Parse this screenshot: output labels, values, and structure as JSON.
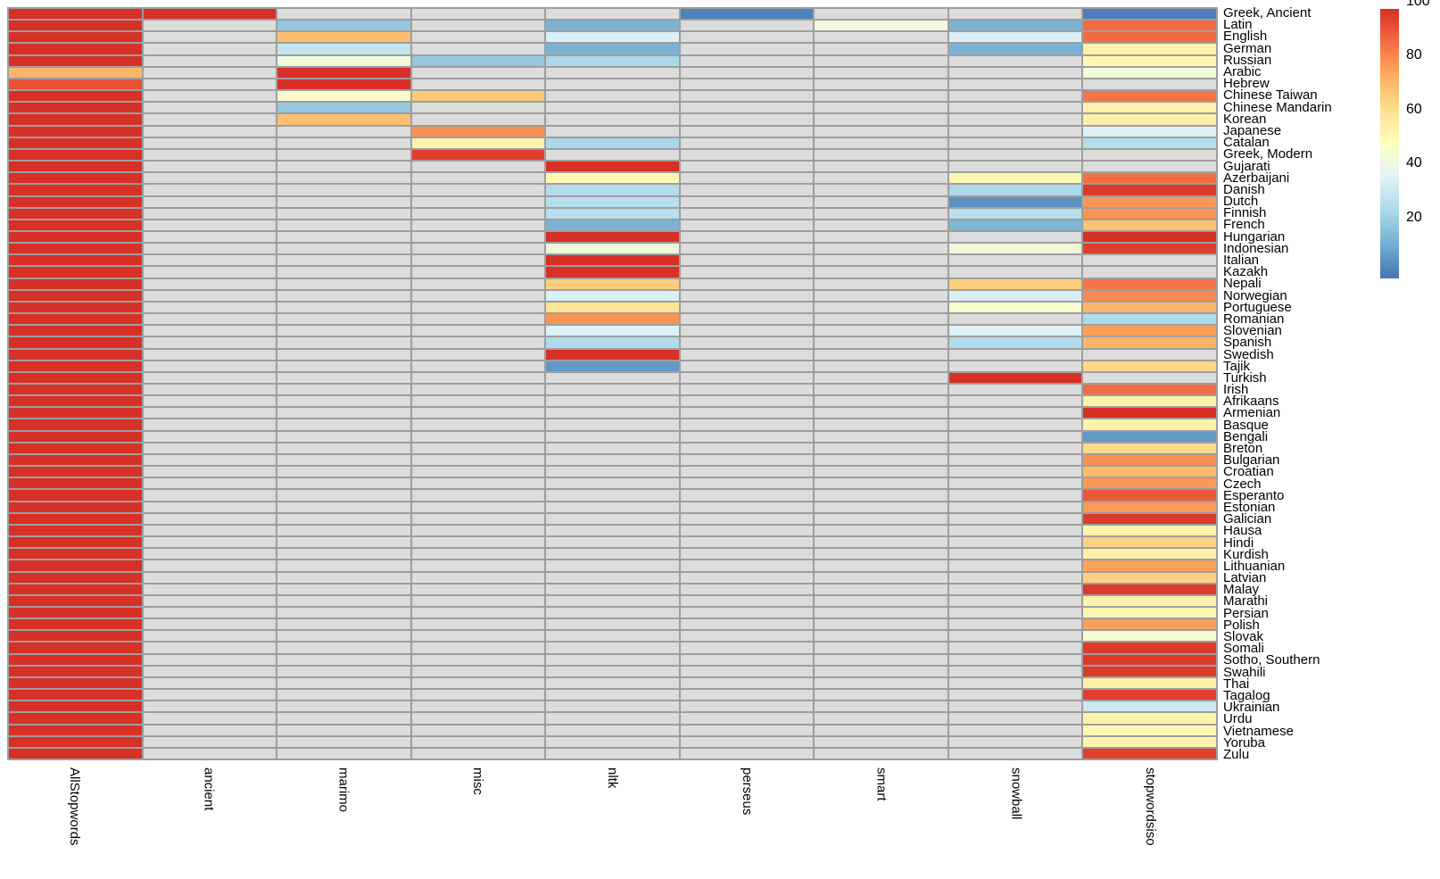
{
  "chart_data": {
    "type": "heatmap",
    "title": "",
    "legend_position": "right",
    "grid_on": true,
    "columns": [
      "AllStopwords",
      "ancient",
      "marimo",
      "misc",
      "nltk",
      "perseus",
      "smart",
      "snowball",
      "stopwordsiso"
    ],
    "rows": [
      "Greek, Ancient",
      "Latin",
      "English",
      "German",
      "Russian",
      "Arabic",
      "Hebrew",
      "Chinese Taiwan",
      "Chinese Mandarin",
      "Korean",
      "Japanese",
      "Catalan",
      "Greek, Modern",
      "Gujarati",
      "Azerbaijani",
      "Danish",
      "Dutch",
      "Finnish",
      "French",
      "Hungarian",
      "Indonesian",
      "Italian",
      "Kazakh",
      "Nepali",
      "Norwegian",
      "Portuguese",
      "Romanian",
      "Slovenian",
      "Spanish",
      "Swedish",
      "Tajik",
      "Turkish",
      "Irish",
      "Afrikaans",
      "Armenian",
      "Basque",
      "Bengali",
      "Breton",
      "Bulgarian",
      "Croatian",
      "Czech",
      "Esperanto",
      "Estonian",
      "Galician",
      "Hausa",
      "Hindi",
      "Kurdish",
      "Lithuanian",
      "Latvian",
      "Malay",
      "Marathi",
      "Persian",
      "Polish",
      "Slovak",
      "Somali",
      "Sotho, Southern",
      "Swahili",
      "Thai",
      "Tagalog",
      "Ukrainian",
      "Urdu",
      "Vietnamese",
      "Yoruba",
      "Zulu"
    ],
    "values": [
      [
        100,
        100,
        null,
        null,
        null,
        3,
        null,
        null,
        2
      ],
      [
        100,
        null,
        20,
        null,
        14,
        null,
        44,
        14,
        88
      ],
      [
        100,
        null,
        71,
        null,
        36,
        null,
        null,
        36,
        88
      ],
      [
        100,
        null,
        31,
        null,
        14,
        null,
        null,
        14,
        55
      ],
      [
        100,
        null,
        44,
        20,
        25,
        null,
        null,
        null,
        53
      ],
      [
        73,
        null,
        100,
        null,
        null,
        null,
        null,
        null,
        45
      ],
      [
        93,
        null,
        100,
        null,
        null,
        null,
        null,
        null,
        null
      ],
      [
        100,
        null,
        47,
        68,
        null,
        null,
        null,
        null,
        86
      ],
      [
        100,
        null,
        20,
        null,
        null,
        null,
        null,
        null,
        55
      ],
      [
        100,
        null,
        71,
        null,
        null,
        null,
        null,
        null,
        56
      ],
      [
        100,
        null,
        null,
        81,
        null,
        null,
        null,
        null,
        37
      ],
      [
        100,
        null,
        null,
        55,
        25,
        null,
        null,
        null,
        27
      ],
      [
        100,
        null,
        null,
        97,
        null,
        null,
        null,
        null,
        null
      ],
      [
        100,
        null,
        null,
        null,
        100,
        null,
        null,
        null,
        null
      ],
      [
        100,
        null,
        null,
        null,
        53,
        null,
        null,
        53,
        87
      ],
      [
        100,
        null,
        null,
        null,
        27,
        null,
        null,
        25,
        98
      ],
      [
        100,
        null,
        null,
        null,
        28,
        null,
        null,
        6,
        79
      ],
      [
        100,
        null,
        null,
        null,
        28,
        null,
        null,
        28,
        80
      ],
      [
        100,
        null,
        null,
        null,
        14,
        null,
        null,
        15,
        70
      ],
      [
        100,
        null,
        null,
        null,
        100,
        null,
        null,
        null,
        100
      ],
      [
        100,
        null,
        null,
        null,
        44,
        null,
        null,
        44,
        97
      ],
      [
        100,
        null,
        null,
        null,
        100,
        null,
        null,
        null,
        null
      ],
      [
        100,
        null,
        null,
        null,
        100,
        null,
        null,
        null,
        null
      ],
      [
        100,
        null,
        null,
        null,
        67,
        null,
        null,
        67,
        86
      ],
      [
        100,
        null,
        null,
        null,
        36,
        null,
        null,
        36,
        82
      ],
      [
        100,
        null,
        null,
        null,
        61,
        null,
        null,
        47,
        73
      ],
      [
        100,
        null,
        null,
        null,
        80,
        null,
        null,
        null,
        26
      ],
      [
        100,
        null,
        null,
        null,
        37,
        null,
        null,
        37,
        78
      ],
      [
        100,
        null,
        null,
        null,
        26,
        null,
        null,
        26,
        74
      ],
      [
        100,
        null,
        null,
        null,
        100,
        null,
        null,
        null,
        null
      ],
      [
        100,
        null,
        null,
        null,
        8,
        null,
        null,
        null,
        65
      ],
      [
        100,
        null,
        null,
        null,
        null,
        null,
        null,
        100,
        null
      ],
      [
        100,
        null,
        null,
        null,
        null,
        null,
        null,
        null,
        88
      ],
      [
        100,
        null,
        null,
        null,
        null,
        null,
        null,
        null,
        55
      ],
      [
        100,
        null,
        null,
        null,
        null,
        null,
        null,
        null,
        100
      ],
      [
        100,
        null,
        null,
        null,
        null,
        null,
        null,
        null,
        55
      ],
      [
        100,
        null,
        null,
        null,
        null,
        null,
        null,
        null,
        8
      ],
      [
        100,
        null,
        null,
        null,
        null,
        null,
        null,
        null,
        64
      ],
      [
        100,
        null,
        null,
        null,
        null,
        null,
        null,
        null,
        81
      ],
      [
        100,
        null,
        null,
        null,
        null,
        null,
        null,
        null,
        72
      ],
      [
        100,
        null,
        null,
        null,
        null,
        null,
        null,
        null,
        79
      ],
      [
        100,
        null,
        null,
        null,
        null,
        null,
        null,
        null,
        92
      ],
      [
        100,
        null,
        null,
        null,
        null,
        null,
        null,
        null,
        79
      ],
      [
        100,
        null,
        null,
        null,
        null,
        null,
        null,
        null,
        98
      ],
      [
        100,
        null,
        null,
        null,
        null,
        null,
        null,
        null,
        55
      ],
      [
        100,
        null,
        null,
        null,
        null,
        null,
        null,
        null,
        66
      ],
      [
        100,
        null,
        null,
        null,
        null,
        null,
        null,
        null,
        56
      ],
      [
        100,
        null,
        null,
        null,
        null,
        null,
        null,
        null,
        77
      ],
      [
        100,
        null,
        null,
        null,
        null,
        null,
        null,
        null,
        67
      ],
      [
        100,
        null,
        null,
        null,
        null,
        null,
        null,
        null,
        98
      ],
      [
        100,
        null,
        null,
        null,
        null,
        null,
        null,
        null,
        55
      ],
      [
        100,
        null,
        null,
        null,
        null,
        null,
        null,
        null,
        54
      ],
      [
        100,
        null,
        null,
        null,
        null,
        null,
        null,
        null,
        78
      ],
      [
        100,
        null,
        null,
        null,
        null,
        null,
        null,
        null,
        46
      ],
      [
        100,
        null,
        null,
        null,
        null,
        null,
        null,
        null,
        98
      ],
      [
        100,
        null,
        null,
        null,
        null,
        null,
        null,
        null,
        98
      ],
      [
        100,
        null,
        null,
        null,
        null,
        null,
        null,
        null,
        98
      ],
      [
        100,
        null,
        null,
        null,
        null,
        null,
        null,
        null,
        56
      ],
      [
        100,
        null,
        null,
        null,
        null,
        null,
        null,
        null,
        97
      ],
      [
        100,
        null,
        null,
        null,
        null,
        null,
        null,
        null,
        32
      ],
      [
        100,
        null,
        null,
        null,
        null,
        null,
        null,
        null,
        55
      ],
      [
        100,
        null,
        null,
        null,
        null,
        null,
        null,
        null,
        53
      ],
      [
        100,
        null,
        null,
        null,
        null,
        null,
        null,
        null,
        55
      ],
      [
        100,
        null,
        null,
        null,
        null,
        null,
        null,
        null,
        97
      ]
    ],
    "value_range": [
      0,
      100
    ],
    "colorbar_ticks": [
      100,
      80,
      60,
      40,
      20
    ],
    "missing_color": "#dcdcdc",
    "grid_line_color": "#9e9e9e",
    "palette_low_to_high": [
      "#4575b4",
      "#74add1",
      "#abd9e9",
      "#e0f3f8",
      "#ffffbf",
      "#fee090",
      "#fdae61",
      "#f46d43",
      "#d73027"
    ]
  }
}
